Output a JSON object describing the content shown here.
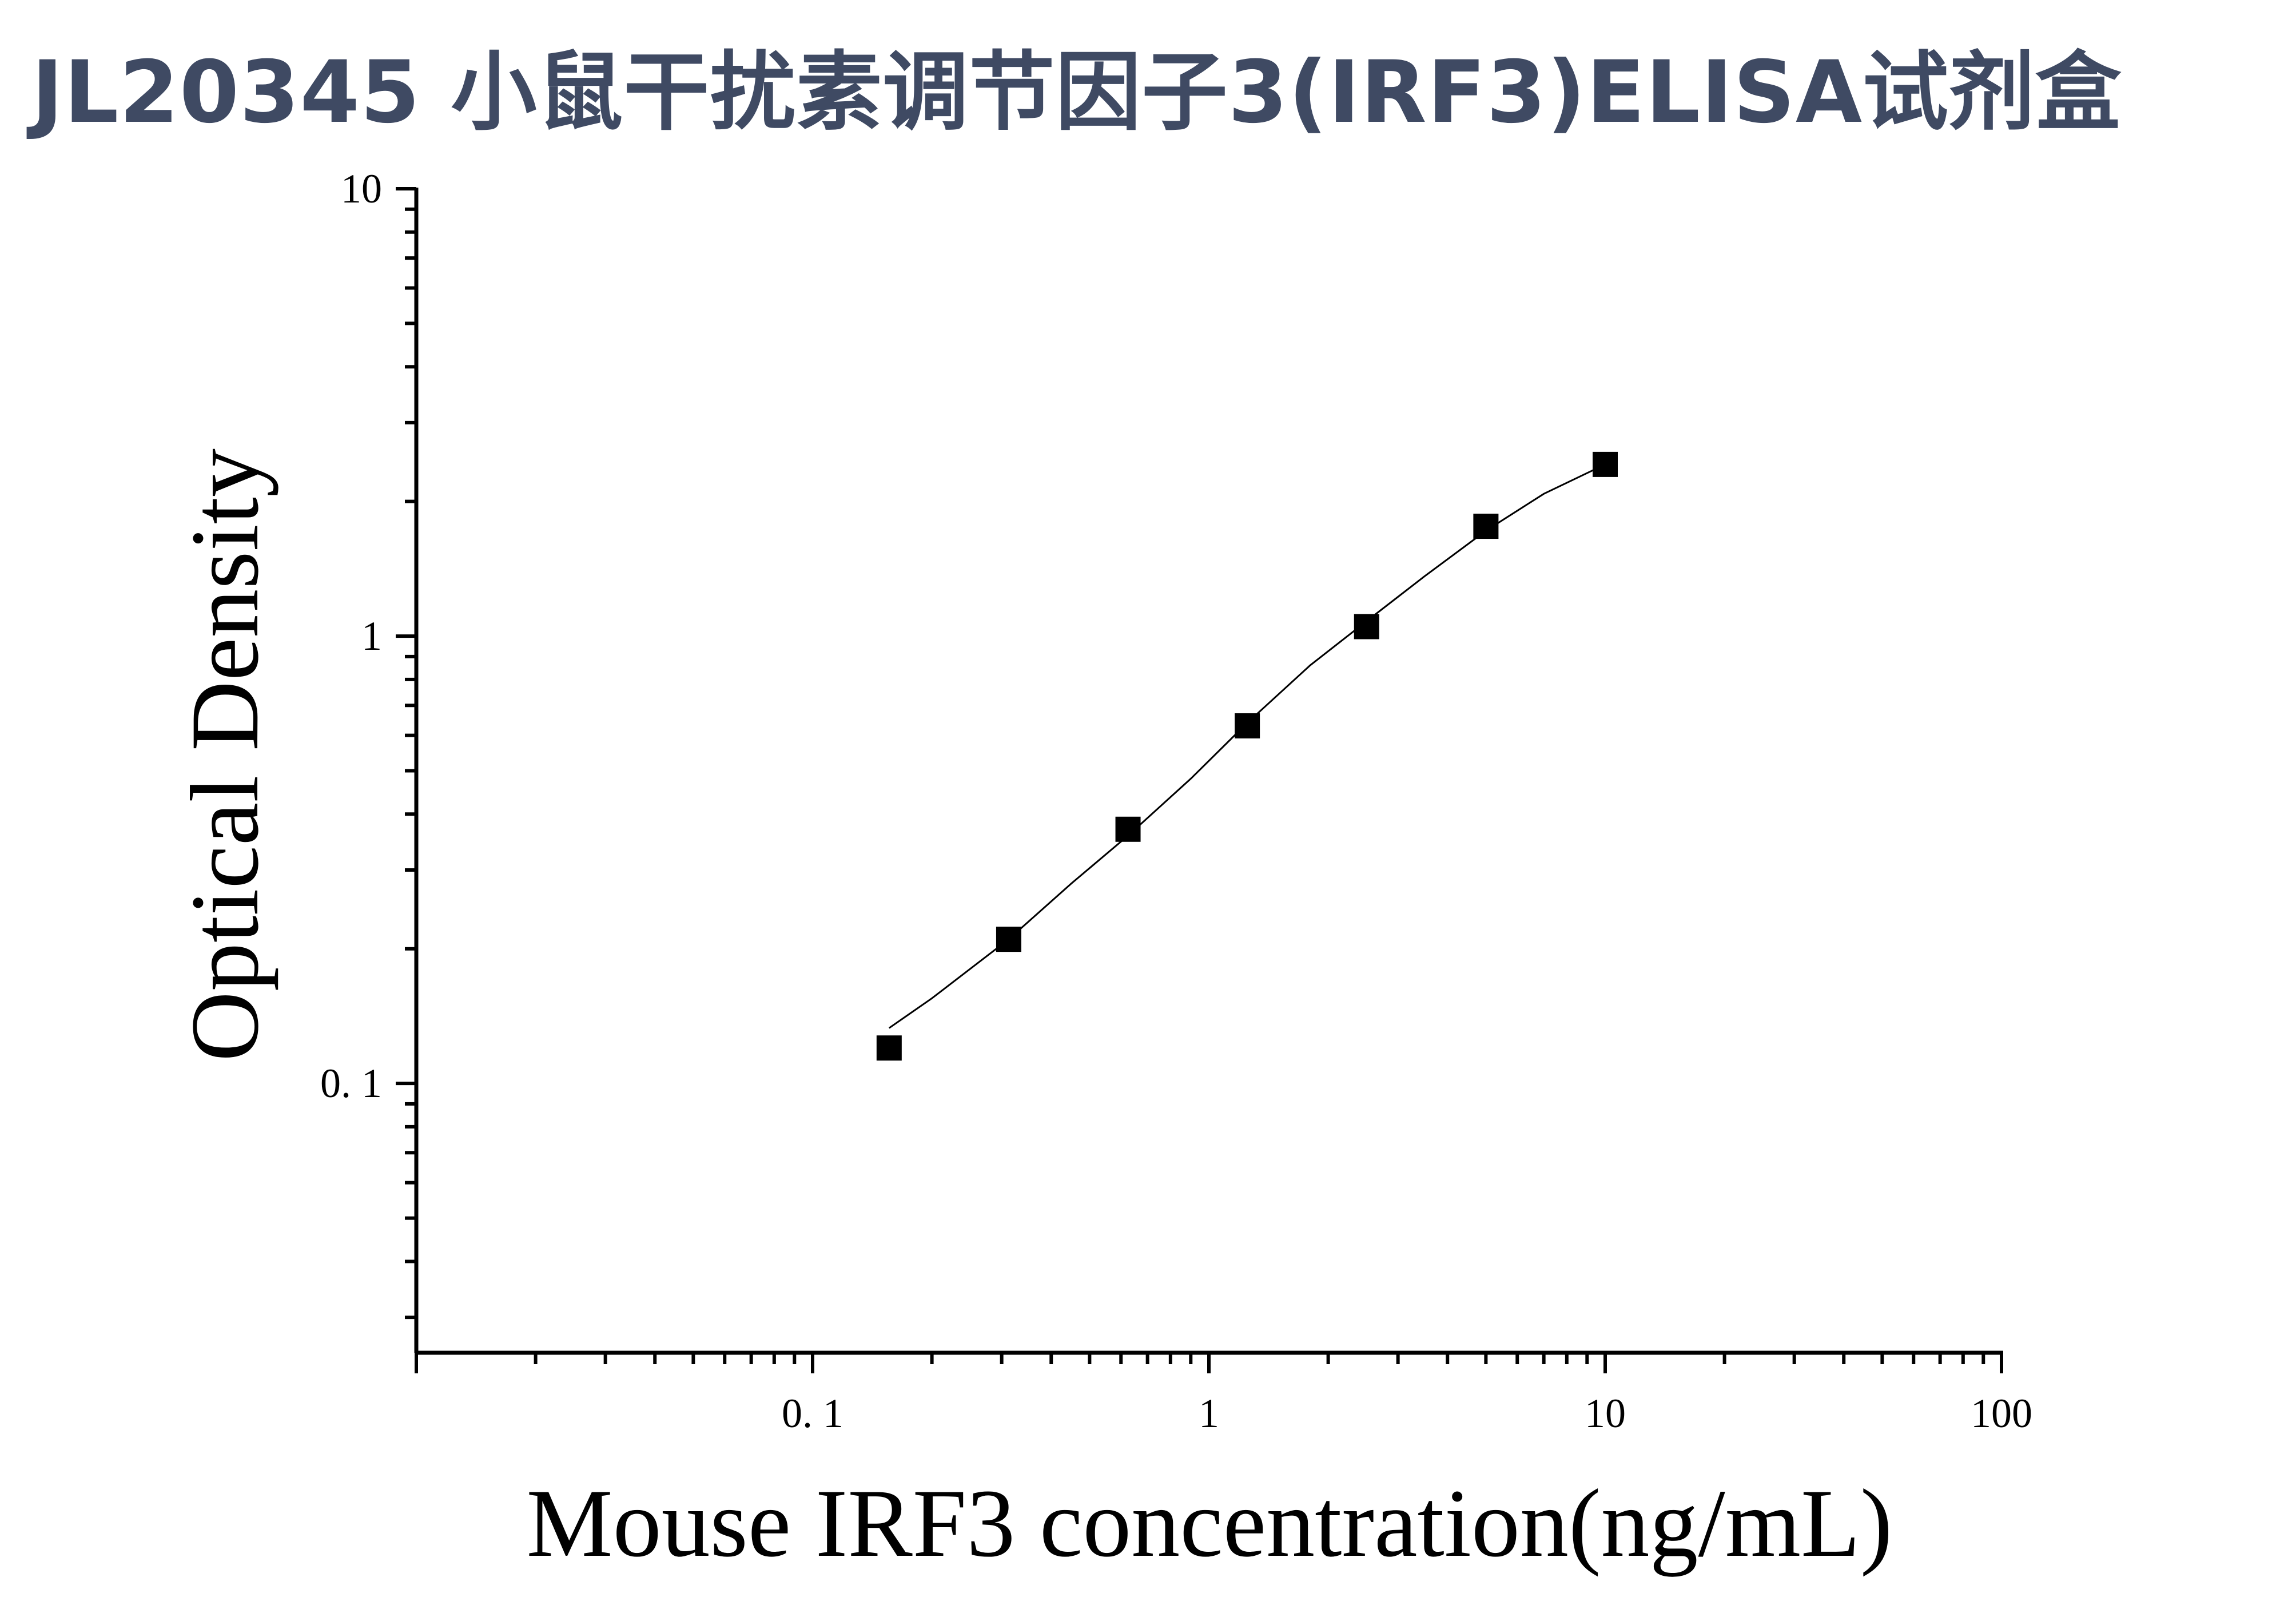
{
  "page_title": "JL20345 小鼠干扰素调节因子3(IRF3)ELISA试剂盒",
  "chart_data": {
    "type": "scatter",
    "title": "JL20345 小鼠干扰素调节因子3(IRF3)ELISA试剂盒",
    "xlabel": "Mouse IRF3 concentration(ng/mL)",
    "ylabel": "Optical Density",
    "xscale": "log",
    "yscale": "log",
    "xlim": [
      0.01,
      100
    ],
    "ylim": [
      0.025,
      10
    ],
    "x_ticks": [
      {
        "value": 0.1,
        "label": "0. 1"
      },
      {
        "value": 1,
        "label": "1"
      },
      {
        "value": 10,
        "label": "10"
      },
      {
        "value": 100,
        "label": "100"
      }
    ],
    "y_ticks": [
      {
        "value": 0.1,
        "label": "0. 1"
      },
      {
        "value": 1,
        "label": "1"
      },
      {
        "value": 10,
        "label": "10"
      }
    ],
    "series": [
      {
        "marker": "square",
        "color": "#000000",
        "x": [
          0.156,
          0.3125,
          0.625,
          1.25,
          2.5,
          5,
          10
        ],
        "y": [
          0.12,
          0.21,
          0.37,
          0.63,
          1.05,
          1.76,
          2.42
        ]
      }
    ],
    "fit_curve": {
      "color": "#000000",
      "x": [
        0.156,
        0.2,
        0.3125,
        0.45,
        0.625,
        0.9,
        1.25,
        1.8,
        2.5,
        3.5,
        5,
        7,
        10
      ],
      "y": [
        0.133,
        0.155,
        0.21,
        0.28,
        0.358,
        0.48,
        0.64,
        0.86,
        1.08,
        1.36,
        1.72,
        2.08,
        2.42
      ]
    },
    "grid": false,
    "legend": "none"
  }
}
